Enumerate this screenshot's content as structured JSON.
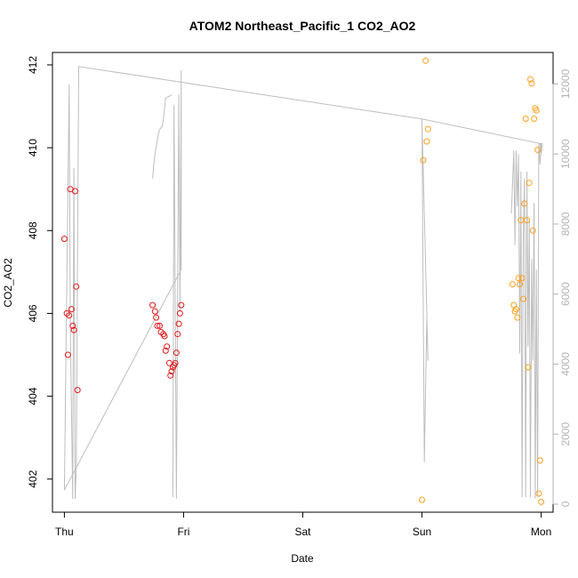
{
  "chart_data": {
    "type": "scatter",
    "title": "ATOM2 Northeast_Pacific_1 CO2_AO2",
    "xlabel": "Date",
    "ylabel": "CO2_AO2",
    "x_tick_labels": [
      "Thu",
      "Fri",
      "Sat",
      "Sun",
      "Mon"
    ],
    "xlim": [
      -0.1,
      4.1
    ],
    "ylim": [
      401.2,
      412.3
    ],
    "y_ticks": [
      402,
      404,
      406,
      408,
      410,
      412
    ],
    "y2_ticks": [
      0,
      2000,
      4000,
      6000,
      8000,
      10000,
      12000
    ],
    "y2lim": [
      -230,
      12900
    ],
    "colors": {
      "series_a": "#e31a1c",
      "series_b": "#ff9f1c",
      "altitude": "#bebebe",
      "right_axis": "#b3b3b3"
    },
    "series": [
      {
        "color": "#e31a1c",
        "points": [
          [
            0.0,
            407.8
          ],
          [
            0.02,
            406.0
          ],
          [
            0.03,
            405.0
          ],
          [
            0.04,
            405.95
          ],
          [
            0.05,
            409.0
          ],
          [
            0.06,
            406.1
          ],
          [
            0.07,
            405.7
          ],
          [
            0.08,
            405.6
          ],
          [
            0.09,
            408.95
          ],
          [
            0.1,
            406.65
          ],
          [
            0.11,
            404.15
          ],
          [
            0.74,
            406.2
          ],
          [
            0.76,
            406.05
          ],
          [
            0.77,
            405.9
          ],
          [
            0.78,
            405.7
          ],
          [
            0.8,
            405.7
          ],
          [
            0.81,
            405.55
          ],
          [
            0.83,
            405.5
          ],
          [
            0.84,
            405.45
          ],
          [
            0.85,
            405.1
          ],
          [
            0.86,
            405.2
          ],
          [
            0.88,
            404.8
          ],
          [
            0.89,
            404.5
          ],
          [
            0.9,
            404.6
          ],
          [
            0.91,
            404.7
          ],
          [
            0.92,
            404.75
          ],
          [
            0.93,
            404.8
          ],
          [
            0.94,
            405.05
          ],
          [
            0.95,
            405.5
          ],
          [
            0.96,
            405.75
          ],
          [
            0.97,
            406.0
          ],
          [
            0.98,
            406.2
          ]
        ]
      },
      {
        "color": "#ff9f1c",
        "points": [
          [
            3.0,
            401.5
          ],
          [
            3.01,
            409.7
          ],
          [
            3.03,
            412.1
          ],
          [
            3.04,
            410.15
          ],
          [
            3.05,
            410.45
          ],
          [
            3.76,
            406.7
          ],
          [
            3.77,
            406.2
          ],
          [
            3.78,
            406.05
          ],
          [
            3.79,
            406.1
          ],
          [
            3.8,
            405.9
          ],
          [
            3.81,
            406.85
          ],
          [
            3.82,
            406.7
          ],
          [
            3.83,
            408.25
          ],
          [
            3.84,
            406.85
          ],
          [
            3.85,
            406.35
          ],
          [
            3.86,
            408.65
          ],
          [
            3.87,
            410.7
          ],
          [
            3.88,
            408.25
          ],
          [
            3.89,
            404.7
          ],
          [
            3.9,
            409.15
          ],
          [
            3.91,
            411.65
          ],
          [
            3.92,
            411.55
          ],
          [
            3.93,
            408.0
          ],
          [
            3.94,
            410.7
          ],
          [
            3.95,
            410.95
          ],
          [
            3.96,
            410.9
          ],
          [
            3.97,
            409.95
          ],
          [
            3.98,
            401.65
          ],
          [
            3.99,
            402.45
          ],
          [
            4.0,
            401.45
          ]
        ]
      }
    ],
    "altitude_path": [
      [
        0.0,
        405
      ],
      [
        0.04,
        12000
      ],
      [
        0.05,
        5000
      ],
      [
        0.07,
        150
      ],
      [
        0.08,
        9600
      ],
      [
        0.09,
        150
      ],
      [
        0.1,
        1000
      ],
      [
        0.12,
        12500
      ],
      [
        3.0,
        11000
      ],
      [
        3.02,
        1200
      ],
      [
        3.04,
        5200
      ],
      [
        3.05,
        4100
      ],
      [
        3.0,
        11000
      ],
      [
        3.99,
        10300
      ],
      [
        4.0,
        10000
      ],
      [
        4.01,
        10300
      ],
      [
        3.99,
        10300
      ]
    ],
    "altitude_path_2": [
      [
        0.0,
        400
      ],
      [
        0.98,
        6700
      ]
    ],
    "altitude_fri_climb": [
      [
        0.74,
        9300
      ],
      [
        0.75,
        9700
      ],
      [
        0.76,
        10000
      ],
      [
        0.77,
        10200
      ],
      [
        0.78,
        10400
      ],
      [
        0.79,
        10600
      ],
      [
        0.8,
        10700
      ],
      [
        0.81,
        10750
      ],
      [
        0.82,
        10780
      ],
      [
        0.83,
        11000
      ],
      [
        0.84,
        11300
      ],
      [
        0.85,
        11600
      ],
      [
        0.88,
        11650
      ],
      [
        0.9,
        11680
      ]
    ],
    "altitude_fri_dives": [
      [
        0.91,
        200
      ],
      [
        0.92,
        11400
      ],
      [
        0.94,
        150
      ],
      [
        0.96,
        11700
      ],
      [
        0.97,
        5500
      ],
      [
        0.98,
        12400
      ],
      [
        0.98,
        6700
      ]
    ],
    "altitude_mon": [
      [
        3.75,
        8300
      ],
      [
        3.77,
        10100
      ],
      [
        3.78,
        7400
      ],
      [
        3.79,
        10100
      ],
      [
        3.8,
        8500
      ],
      [
        3.81,
        10000
      ],
      [
        3.82,
        4300
      ],
      [
        3.83,
        9500
      ],
      [
        3.84,
        200
      ],
      [
        3.85,
        7800
      ],
      [
        3.86,
        9300
      ],
      [
        3.87,
        200
      ],
      [
        3.88,
        9500
      ],
      [
        3.89,
        4500
      ],
      [
        3.9,
        8100
      ],
      [
        3.91,
        200
      ],
      [
        3.92,
        7000
      ],
      [
        3.93,
        4100
      ],
      [
        3.94,
        8600
      ],
      [
        3.95,
        150
      ],
      [
        3.96,
        6700
      ],
      [
        3.97,
        200
      ],
      [
        3.98,
        10300
      ],
      [
        3.99,
        9700
      ],
      [
        4.0,
        10300
      ]
    ]
  }
}
